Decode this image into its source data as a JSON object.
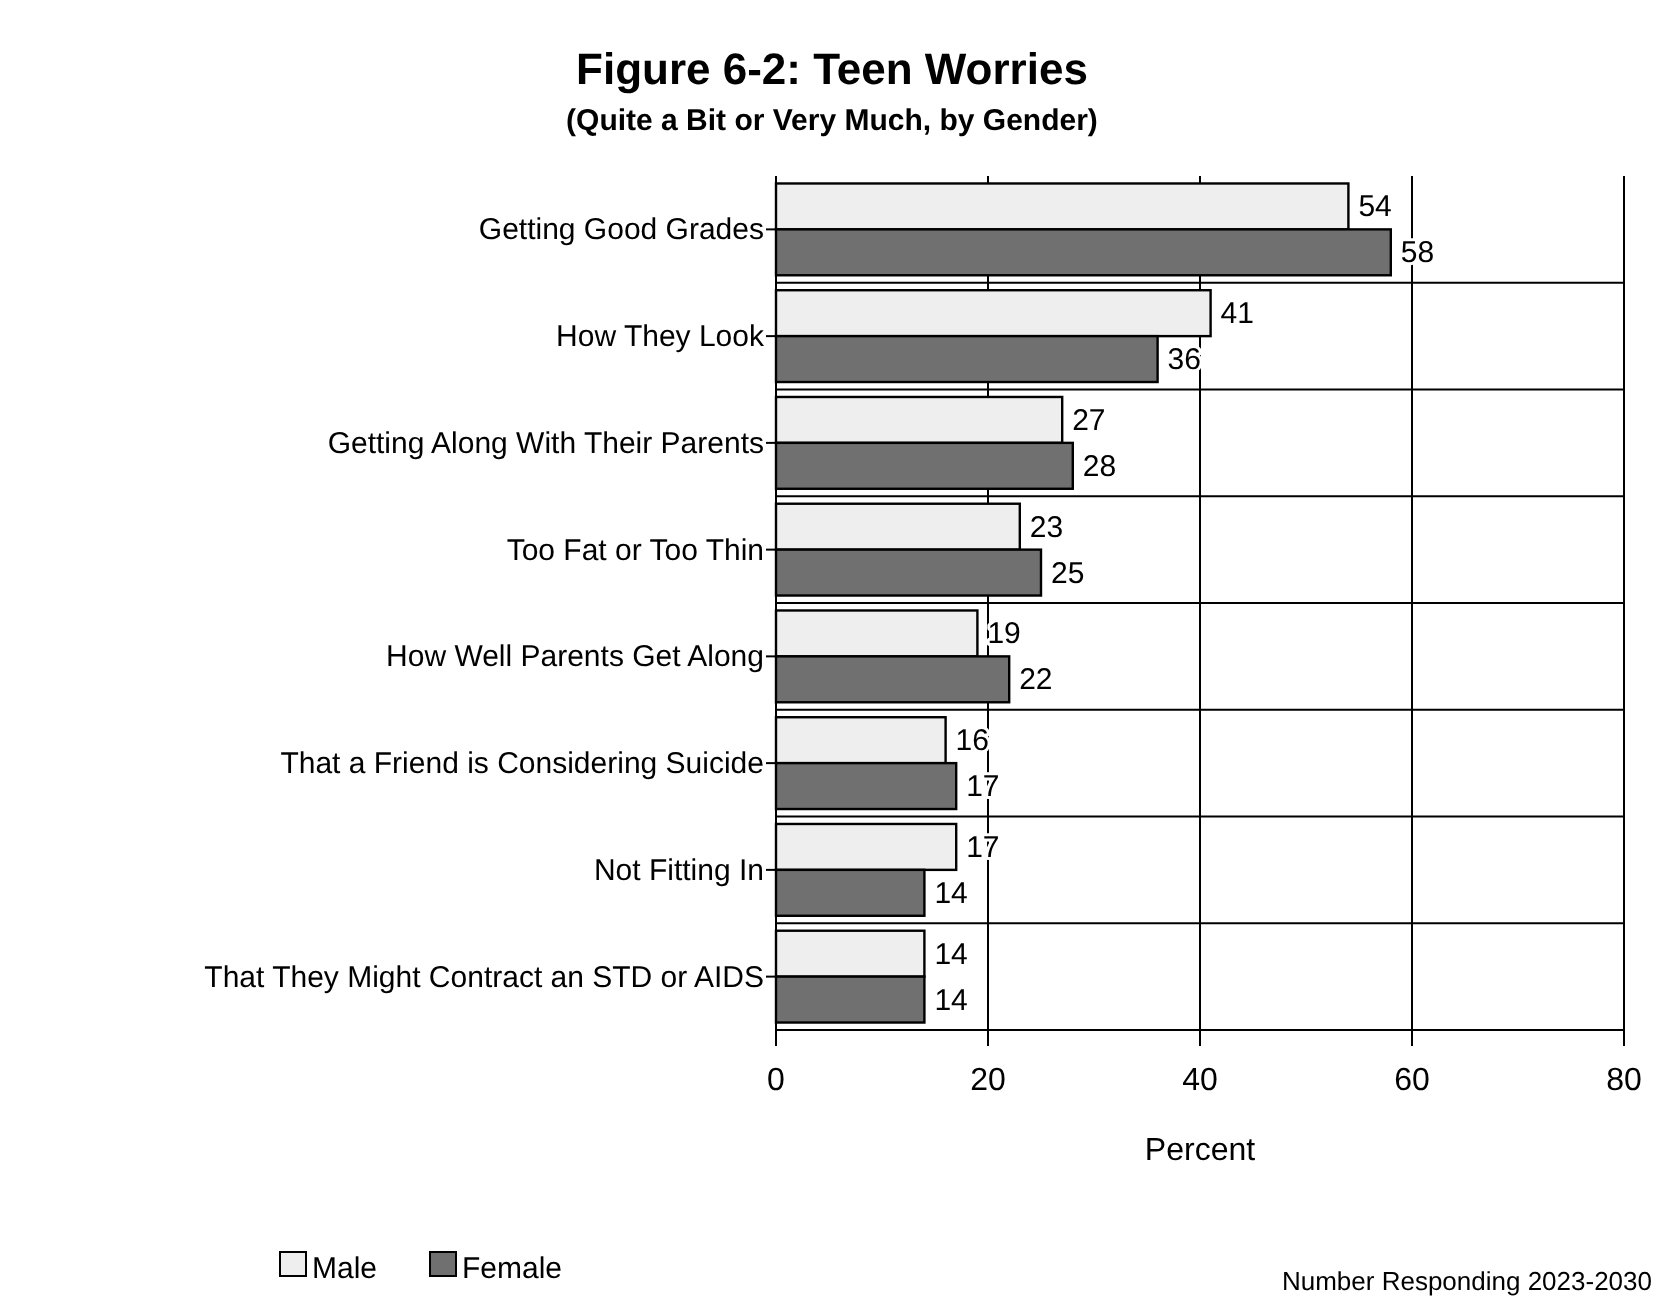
{
  "chart_data": {
    "type": "bar",
    "orientation": "horizontal",
    "title": "Figure 6-2: Teen Worries",
    "subtitle": "(Quite a Bit or Very Much, by Gender)",
    "categories": [
      "Getting Good Grades",
      "How They Look",
      "Getting Along With Their Parents",
      "Too Fat or Too Thin",
      "How Well Parents Get Along",
      "That a Friend is Considering Suicide",
      "Not Fitting In",
      "That They Might Contract an STD or AIDS"
    ],
    "series": [
      {
        "name": "Male",
        "color": "#eeeeee",
        "values": [
          54,
          41,
          27,
          23,
          19,
          16,
          17,
          14
        ]
      },
      {
        "name": "Female",
        "color": "#707070",
        "values": [
          58,
          36,
          28,
          25,
          22,
          17,
          14,
          14
        ]
      }
    ],
    "xlabel": "Percent",
    "xlim": [
      0,
      80
    ],
    "xticks": [
      0,
      20,
      40,
      60,
      80
    ],
    "grid": true,
    "data_labels": true,
    "legend": "bottom left",
    "annotations": [
      "Number Responding 2023-2030"
    ]
  }
}
